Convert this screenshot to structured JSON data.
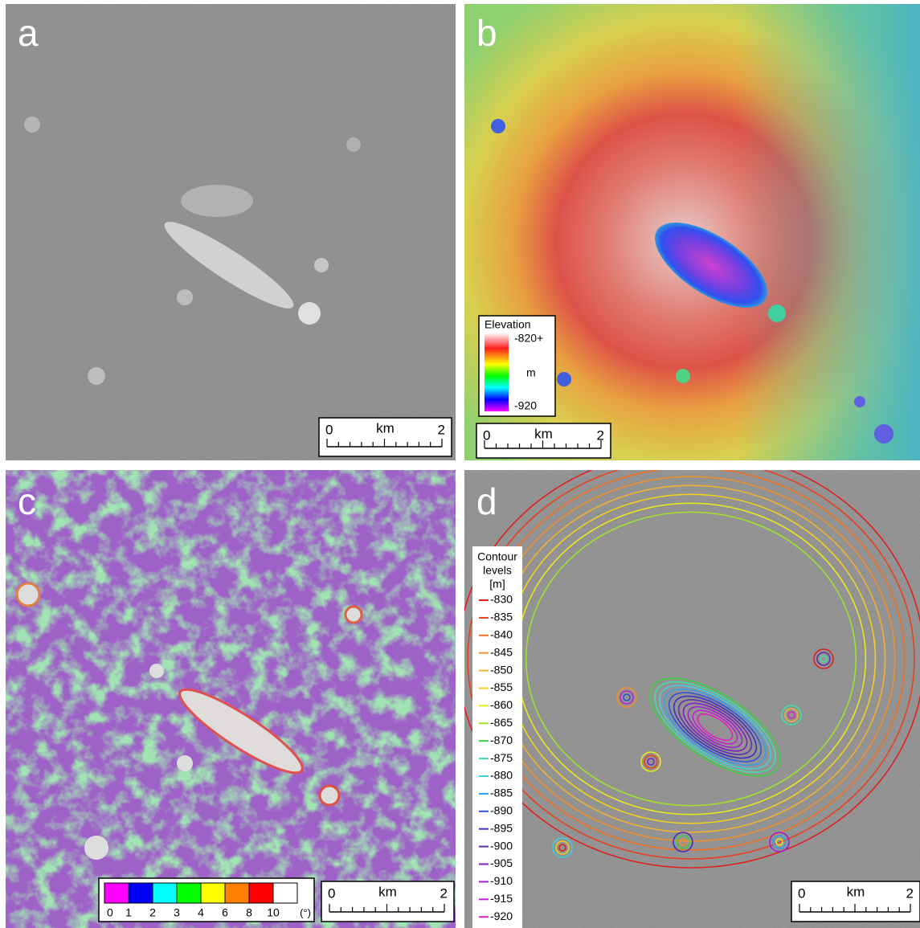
{
  "panels": [
    {
      "label": "a",
      "scale_bar": {
        "start": "0",
        "unit": "km",
        "end": "2"
      }
    },
    {
      "label": "b",
      "scale_bar": {
        "start": "0",
        "unit": "km",
        "end": "2"
      }
    },
    {
      "label": "c",
      "scale_bar": {
        "start": "0",
        "unit": "km",
        "end": "2"
      }
    },
    {
      "label": "d",
      "scale_bar": {
        "start": "0",
        "unit": "km",
        "end": "2"
      }
    }
  ],
  "elevation_legend": {
    "title": "Elevation",
    "max": "-820+",
    "unit": "m",
    "min": "-920"
  },
  "slope_legend": {
    "ticks": [
      "0",
      "1",
      "2",
      "3",
      "4",
      "6",
      "8",
      "10"
    ],
    "unit": "(°)",
    "colors": [
      "#ff00ff",
      "#0000ff",
      "#00ffff",
      "#00ff00",
      "#ffff00",
      "#ff8000",
      "#ff0000",
      "#ffffff"
    ]
  },
  "contour_legend": {
    "title_lines": [
      "Contour",
      "levels",
      "[m]"
    ],
    "levels": [
      {
        "label": "-830",
        "color": "#e02020"
      },
      {
        "label": "-835",
        "color": "#e84020"
      },
      {
        "label": "-840",
        "color": "#f07020"
      },
      {
        "label": "-845",
        "color": "#f09030"
      },
      {
        "label": "-850",
        "color": "#f0b030"
      },
      {
        "label": "-855",
        "color": "#f0d020"
      },
      {
        "label": "-860",
        "color": "#e8e820"
      },
      {
        "label": "-865",
        "color": "#a0e030"
      },
      {
        "label": "-870",
        "color": "#40d040"
      },
      {
        "label": "-875",
        "color": "#40e0a0"
      },
      {
        "label": "-880",
        "color": "#40d0e0"
      },
      {
        "label": "-885",
        "color": "#30a0f0"
      },
      {
        "label": "-890",
        "color": "#3050e0"
      },
      {
        "label": "-895",
        "color": "#4030c0"
      },
      {
        "label": "-900",
        "color": "#6030b0"
      },
      {
        "label": "-905",
        "color": "#8020c0"
      },
      {
        "label": "-910",
        "color": "#a020d0"
      },
      {
        "label": "-915",
        "color": "#c020d0"
      },
      {
        "label": "-920",
        "color": "#e020c0"
      }
    ]
  }
}
